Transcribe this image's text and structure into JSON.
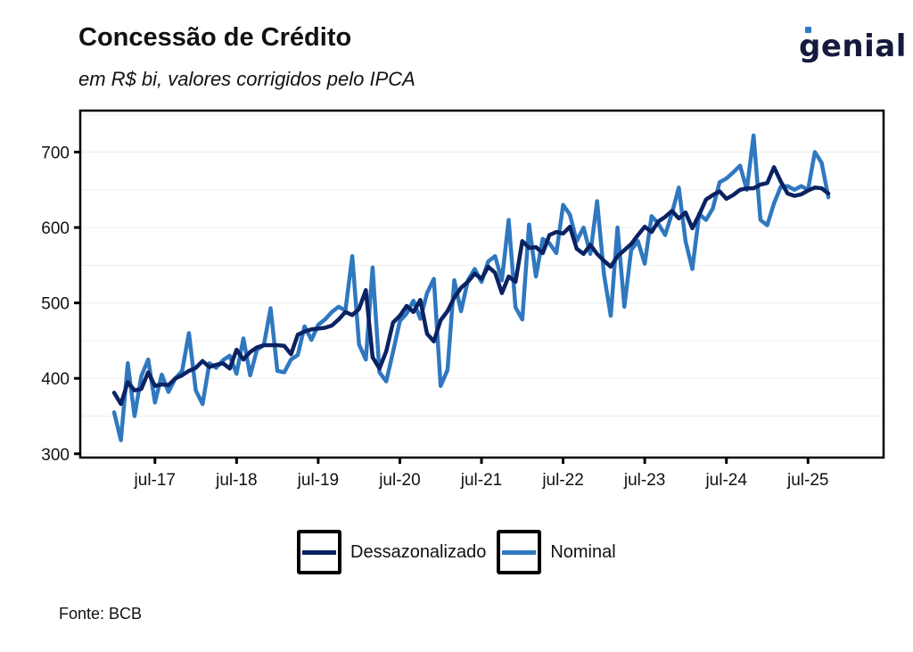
{
  "header": {
    "title": "Concessão de Crédito",
    "subtitle": "em R$ bi, valores corrigidos pelo IPCA",
    "logo_text": "genial"
  },
  "footer": {
    "source": "Fonte: BCB"
  },
  "colors": {
    "dessazonalizado": "#0b2263",
    "nominal": "#2f78c0",
    "logo": "#141a3c",
    "logo_accent": "#2e78c7"
  },
  "chart_data": {
    "type": "line",
    "title": "Concessão de Crédito",
    "subtitle": "em R$ bi, valores corrigidos pelo IPCA",
    "xlabel": "",
    "ylabel": "",
    "ylim": [
      295,
      755
    ],
    "yticks": [
      300,
      400,
      500,
      600,
      700
    ],
    "ygrid_minor": [
      350,
      450,
      550,
      650,
      750
    ],
    "x_start": "2017-01",
    "x_end": "2025-11",
    "xtick_labels": [
      "jul-17",
      "jul-18",
      "jul-19",
      "jul-20",
      "jul-21",
      "jul-22",
      "jul-23",
      "jul-24",
      "jul-25"
    ],
    "xtick_indices": [
      6,
      18,
      30,
      42,
      54,
      66,
      78,
      90,
      102
    ],
    "grid": "horizontal-light",
    "legend_position": "bottom",
    "legend": [
      "Dessazonalizado",
      "Nominal"
    ],
    "series": [
      {
        "name": "Dessazonalizado",
        "values": [
          381,
          366,
          395,
          384,
          386,
          408,
          390,
          392,
          391,
          400,
          404,
          410,
          414,
          423,
          415,
          418,
          420,
          413,
          438,
          425,
          435,
          441,
          444,
          444,
          444,
          443,
          432,
          458,
          462,
          465,
          466,
          467,
          470,
          478,
          488,
          484,
          492,
          517,
          428,
          413,
          436,
          474,
          483,
          496,
          488,
          504,
          459,
          449,
          477,
          489,
          507,
          520,
          528,
          539,
          532,
          548,
          540,
          513,
          535,
          528,
          582,
          573,
          574,
          566,
          590,
          594,
          592,
          601,
          572,
          565,
          577,
          565,
          556,
          548,
          562,
          570,
          578,
          590,
          601,
          594,
          608,
          614,
          622,
          612,
          620,
          599,
          617,
          637,
          643,
          648,
          638,
          643,
          650,
          652,
          652,
          657,
          659,
          680,
          661,
          645,
          642,
          644,
          649,
          653,
          652,
          645
        ],
        "color": "#0b2263"
      },
      {
        "name": "Nominal",
        "values": [
          355,
          318,
          420,
          350,
          403,
          425,
          368,
          405,
          382,
          400,
          410,
          460,
          384,
          366,
          420,
          414,
          424,
          430,
          406,
          453,
          404,
          438,
          444,
          493,
          410,
          408,
          425,
          431,
          469,
          451,
          471,
          478,
          488,
          495,
          490,
          562,
          445,
          425,
          547,
          408,
          396,
          435,
          476,
          486,
          503,
          479,
          513,
          532,
          390,
          411,
          530,
          489,
          530,
          545,
          528,
          555,
          562,
          530,
          610,
          494,
          478,
          604,
          535,
          585,
          579,
          566,
          630,
          617,
          582,
          600,
          565,
          635,
          538,
          483,
          600,
          495,
          570,
          582,
          552,
          615,
          605,
          590,
          619,
          653,
          582,
          545,
          618,
          610,
          625,
          660,
          665,
          673,
          682,
          650,
          722,
          610,
          603,
          632,
          654,
          655,
          650,
          655,
          650,
          700,
          686,
          640
        ],
        "color": "#2f78c0"
      }
    ]
  }
}
